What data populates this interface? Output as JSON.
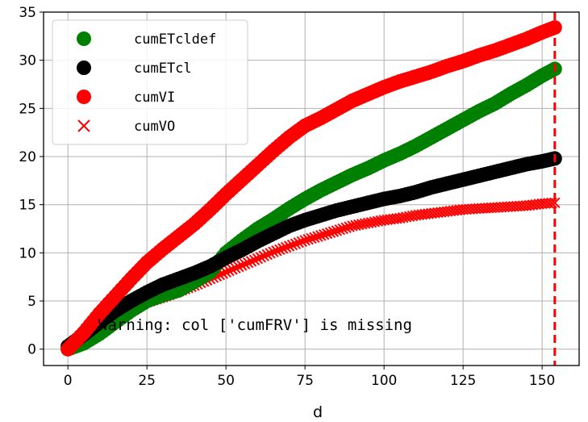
{
  "chart_data": {
    "type": "scatter",
    "title": "",
    "xlabel": "d",
    "ylabel": "",
    "xlim": [
      -7.7,
      161.7
    ],
    "ylim": [
      -1.7,
      35
    ],
    "xticks": [
      0,
      25,
      50,
      75,
      100,
      125,
      150
    ],
    "yticks": [
      0,
      5,
      10,
      15,
      20,
      25,
      30,
      35
    ],
    "grid": true,
    "legend_position": "top-left",
    "vline": {
      "x": 154,
      "color": "#ff0000",
      "style": "dashed"
    },
    "annotation": "Warning: col ['cumFRV'] is missing",
    "series": [
      {
        "name": "cumETcldef",
        "marker": "circle",
        "color": "#008000",
        "points": [
          [
            0,
            0
          ],
          [
            5,
            0.6
          ],
          [
            10,
            1.6
          ],
          [
            15,
            2.8
          ],
          [
            20,
            4.0
          ],
          [
            25,
            5.0
          ],
          [
            30,
            5.6
          ],
          [
            35,
            6.1
          ],
          [
            40,
            7.0
          ],
          [
            45,
            8.0
          ],
          [
            50,
            10.0
          ],
          [
            55,
            11.3
          ],
          [
            60,
            12.5
          ],
          [
            65,
            13.5
          ],
          [
            70,
            14.6
          ],
          [
            75,
            15.6
          ],
          [
            80,
            16.5
          ],
          [
            85,
            17.3
          ],
          [
            90,
            18.1
          ],
          [
            95,
            18.8
          ],
          [
            100,
            19.6
          ],
          [
            105,
            20.3
          ],
          [
            110,
            21.1
          ],
          [
            115,
            22.0
          ],
          [
            120,
            22.9
          ],
          [
            125,
            23.8
          ],
          [
            130,
            24.7
          ],
          [
            135,
            25.5
          ],
          [
            140,
            26.5
          ],
          [
            145,
            27.4
          ],
          [
            150,
            28.4
          ],
          [
            154,
            29.1
          ]
        ]
      },
      {
        "name": "cumETcl",
        "marker": "circle",
        "color": "#000000",
        "points": [
          [
            0,
            0.3
          ],
          [
            5,
            1.5
          ],
          [
            10,
            2.8
          ],
          [
            15,
            4.0
          ],
          [
            20,
            5.0
          ],
          [
            25,
            5.9
          ],
          [
            30,
            6.7
          ],
          [
            35,
            7.3
          ],
          [
            40,
            7.9
          ],
          [
            45,
            8.6
          ],
          [
            50,
            9.5
          ],
          [
            55,
            10.3
          ],
          [
            60,
            11.2
          ],
          [
            65,
            12.0
          ],
          [
            70,
            12.8
          ],
          [
            75,
            13.4
          ],
          [
            80,
            13.9
          ],
          [
            85,
            14.4
          ],
          [
            90,
            14.8
          ],
          [
            95,
            15.2
          ],
          [
            100,
            15.6
          ],
          [
            105,
            15.9
          ],
          [
            110,
            16.3
          ],
          [
            115,
            16.8
          ],
          [
            120,
            17.2
          ],
          [
            125,
            17.6
          ],
          [
            130,
            18.0
          ],
          [
            135,
            18.4
          ],
          [
            140,
            18.8
          ],
          [
            145,
            19.2
          ],
          [
            150,
            19.5
          ],
          [
            154,
            19.8
          ]
        ]
      },
      {
        "name": "cumVI",
        "marker": "circle",
        "color": "#ff0000",
        "points": [
          [
            0,
            0
          ],
          [
            5,
            1.7
          ],
          [
            10,
            3.7
          ],
          [
            15,
            5.5
          ],
          [
            20,
            7.3
          ],
          [
            25,
            9.0
          ],
          [
            30,
            10.4
          ],
          [
            35,
            11.7
          ],
          [
            40,
            13.0
          ],
          [
            45,
            14.5
          ],
          [
            50,
            16.1
          ],
          [
            55,
            17.6
          ],
          [
            60,
            19.1
          ],
          [
            65,
            20.6
          ],
          [
            70,
            22.0
          ],
          [
            75,
            23.2
          ],
          [
            80,
            24.0
          ],
          [
            85,
            24.9
          ],
          [
            90,
            25.8
          ],
          [
            95,
            26.5
          ],
          [
            100,
            27.2
          ],
          [
            105,
            27.8
          ],
          [
            110,
            28.3
          ],
          [
            115,
            28.8
          ],
          [
            120,
            29.4
          ],
          [
            125,
            29.9
          ],
          [
            130,
            30.5
          ],
          [
            135,
            31.0
          ],
          [
            140,
            31.6
          ],
          [
            145,
            32.2
          ],
          [
            150,
            32.9
          ],
          [
            154,
            33.4
          ]
        ]
      },
      {
        "name": "cumVO",
        "marker": "x",
        "color": "#ff0000",
        "points": [
          [
            0,
            0
          ],
          [
            5,
            1.2
          ],
          [
            10,
            2.5
          ],
          [
            15,
            3.5
          ],
          [
            20,
            4.3
          ],
          [
            25,
            4.9
          ],
          [
            30,
            5.4
          ],
          [
            35,
            6.0
          ],
          [
            40,
            6.6
          ],
          [
            45,
            7.3
          ],
          [
            50,
            8.0
          ],
          [
            55,
            8.7
          ],
          [
            60,
            9.4
          ],
          [
            65,
            10.1
          ],
          [
            70,
            10.7
          ],
          [
            75,
            11.3
          ],
          [
            80,
            11.8
          ],
          [
            85,
            12.3
          ],
          [
            90,
            12.8
          ],
          [
            95,
            13.1
          ],
          [
            100,
            13.4
          ],
          [
            105,
            13.6
          ],
          [
            110,
            13.9
          ],
          [
            115,
            14.1
          ],
          [
            120,
            14.3
          ],
          [
            125,
            14.5
          ],
          [
            130,
            14.6
          ],
          [
            135,
            14.7
          ],
          [
            140,
            14.8
          ],
          [
            145,
            14.9
          ],
          [
            150,
            15.1
          ],
          [
            154,
            15.2
          ]
        ]
      }
    ]
  }
}
